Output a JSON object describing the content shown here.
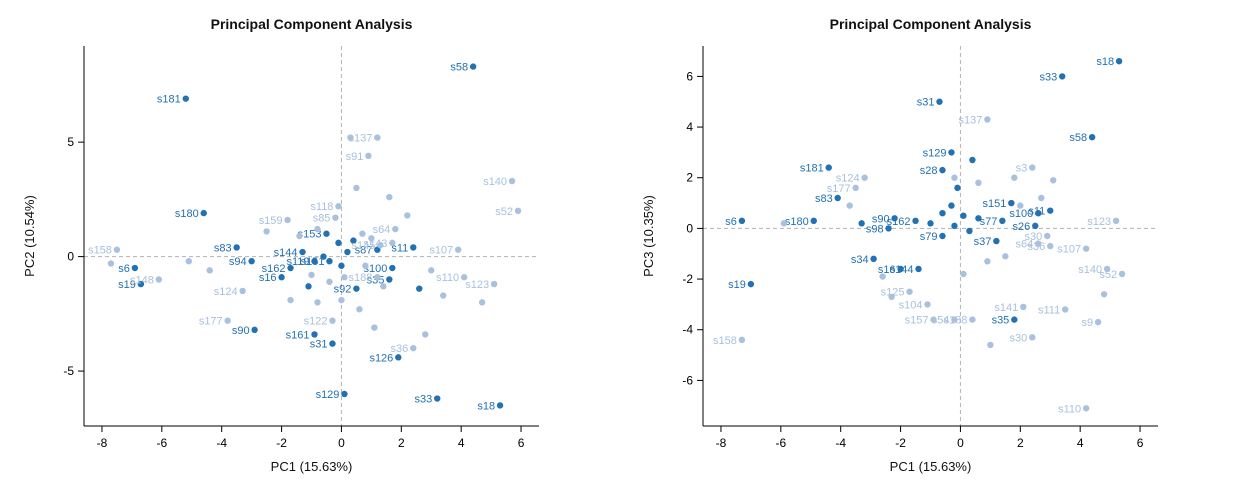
{
  "colors": {
    "dark_group": "#2271b3",
    "light_group": "#a9c0de",
    "zero_line": "#b3b3b3",
    "axis": "#000000",
    "title": "#111111"
  },
  "chart_data": [
    {
      "type": "scatter",
      "title": "Principal Component Analysis",
      "xlabel": "PC1 (15.63%)",
      "ylabel": "PC2 (10.54%)",
      "xlim": [
        -8.6,
        6.6
      ],
      "ylim": [
        -7.4,
        9.2
      ],
      "xticks": [
        -8,
        -6,
        -4,
        -2,
        0,
        2,
        4,
        6
      ],
      "yticks": [
        -5,
        0,
        5
      ],
      "grid": false,
      "zero_lines": true,
      "legend": "none",
      "series": [
        {
          "name": "group-dark",
          "color": "#2271b3",
          "points": [
            {
              "label": "s58",
              "x": 4.4,
              "y": 8.3
            },
            {
              "label": "s181",
              "x": -5.2,
              "y": 6.9
            },
            {
              "label": "s180",
              "x": -4.6,
              "y": 1.9
            },
            {
              "label": "s83",
              "x": -3.5,
              "y": 0.4
            },
            {
              "label": "s94",
              "x": -3.0,
              "y": -0.2
            },
            {
              "label": "s6",
              "x": -6.9,
              "y": -0.5
            },
            {
              "label": "s19",
              "x": -6.7,
              "y": -1.2
            },
            {
              "label": "s153",
              "x": -0.5,
              "y": 1.0
            },
            {
              "label": "s144",
              "x": -1.3,
              "y": 0.2
            },
            {
              "label": "s162",
              "x": -1.7,
              "y": -0.5
            },
            {
              "label": "s16",
              "x": -2.0,
              "y": -0.9
            },
            {
              "label": "s119",
              "x": -0.9,
              "y": -0.2
            },
            {
              "label": "s151",
              "x": -0.4,
              "y": -0.2
            },
            {
              "label": "s87",
              "x": 1.2,
              "y": 0.3
            },
            {
              "label": "s11",
              "x": 2.4,
              "y": 0.4
            },
            {
              "label": "s100",
              "x": 1.7,
              "y": -0.5
            },
            {
              "label": "s35",
              "x": 1.6,
              "y": -1.0
            },
            {
              "label": "s92",
              "x": 0.5,
              "y": -1.4
            },
            {
              "label": "s90",
              "x": -2.9,
              "y": -3.2
            },
            {
              "label": "s161",
              "x": -0.9,
              "y": -3.4
            },
            {
              "label": "s31",
              "x": -0.3,
              "y": -3.8
            },
            {
              "label": "s126",
              "x": 1.9,
              "y": -4.4
            },
            {
              "label": "s129",
              "x": 0.1,
              "y": -6.0
            },
            {
              "label": "s33",
              "x": 3.2,
              "y": -6.2
            },
            {
              "label": "s18",
              "x": 5.3,
              "y": -6.5
            },
            {
              "label": "",
              "x": -0.1,
              "y": 0.6
            },
            {
              "label": "",
              "x": 0.2,
              "y": 0.2
            },
            {
              "label": "",
              "x": -0.6,
              "y": 0.0
            },
            {
              "label": "",
              "x": 0.4,
              "y": 0.7
            },
            {
              "label": "",
              "x": 0.0,
              "y": -0.4
            },
            {
              "label": "",
              "x": 2.6,
              "y": -1.4
            },
            {
              "label": "",
              "x": -1.1,
              "y": -1.3
            }
          ]
        },
        {
          "name": "group-light",
          "color": "#a9c0de",
          "points": [
            {
              "label": "s137",
              "x": 1.2,
              "y": 5.2
            },
            {
              "label": "s91",
              "x": 0.9,
              "y": 4.4
            },
            {
              "label": "",
              "x": 0.3,
              "y": 5.2
            },
            {
              "label": "s140",
              "x": 5.7,
              "y": 3.3
            },
            {
              "label": "s52",
              "x": 5.9,
              "y": 2.0
            },
            {
              "label": "s118",
              "x": -0.1,
              "y": 2.2
            },
            {
              "label": "s85",
              "x": -0.2,
              "y": 1.7
            },
            {
              "label": "s159",
              "x": -1.8,
              "y": 1.6
            },
            {
              "label": "s64",
              "x": 1.8,
              "y": 1.2
            },
            {
              "label": "s143",
              "x": 1.7,
              "y": 0.6
            },
            {
              "label": "s145",
              "x": 1.3,
              "y": 0.5
            },
            {
              "label": "s158",
              "x": -7.5,
              "y": 0.3
            },
            {
              "label": "",
              "x": -7.7,
              "y": -0.3
            },
            {
              "label": "s148",
              "x": -6.1,
              "y": -1.0
            },
            {
              "label": "s124",
              "x": -3.3,
              "y": -1.5
            },
            {
              "label": "s177",
              "x": -3.8,
              "y": -2.8
            },
            {
              "label": "s122",
              "x": -0.3,
              "y": -2.8
            },
            {
              "label": "s107",
              "x": 3.9,
              "y": 0.3
            },
            {
              "label": "s110",
              "x": 4.1,
              "y": -0.9
            },
            {
              "label": "s123",
              "x": 5.1,
              "y": -1.2
            },
            {
              "label": "s188",
              "x": 1.2,
              "y": -0.9
            },
            {
              "label": "s36",
              "x": 2.4,
              "y": -4.0
            },
            {
              "label": "",
              "x": -2.5,
              "y": 1.1
            },
            {
              "label": "",
              "x": -1.4,
              "y": 0.9
            },
            {
              "label": "",
              "x": -0.8,
              "y": 1.2
            },
            {
              "label": "",
              "x": 0.7,
              "y": 1.0
            },
            {
              "label": "",
              "x": 1.0,
              "y": 0.8
            },
            {
              "label": "",
              "x": -4.4,
              "y": -0.6
            },
            {
              "label": "",
              "x": -5.1,
              "y": -0.2
            },
            {
              "label": "",
              "x": -1.0,
              "y": -0.8
            },
            {
              "label": "",
              "x": -0.4,
              "y": -1.1
            },
            {
              "label": "",
              "x": 0.1,
              "y": -0.9
            },
            {
              "label": "",
              "x": 0.8,
              "y": -0.4
            },
            {
              "label": "",
              "x": 1.4,
              "y": -1.3
            },
            {
              "label": "",
              "x": -1.7,
              "y": -1.9
            },
            {
              "label": "",
              "x": -0.8,
              "y": -2.0
            },
            {
              "label": "",
              "x": 0.0,
              "y": -1.9
            },
            {
              "label": "",
              "x": 0.6,
              "y": -2.3
            },
            {
              "label": "",
              "x": 3.0,
              "y": -0.6
            },
            {
              "label": "",
              "x": 3.4,
              "y": -1.7
            },
            {
              "label": "",
              "x": 4.7,
              "y": -2.0
            },
            {
              "label": "",
              "x": 1.1,
              "y": -3.1
            },
            {
              "label": "",
              "x": 2.8,
              "y": -3.4
            },
            {
              "label": "",
              "x": 1.6,
              "y": 2.6
            },
            {
              "label": "",
              "x": 2.2,
              "y": 1.8
            },
            {
              "label": "",
              "x": 0.5,
              "y": 3.0
            }
          ]
        }
      ]
    },
    {
      "type": "scatter",
      "title": "Principal Component Analysis",
      "xlabel": "PC1 (15.63%)",
      "ylabel": "PC3 (10.35%)",
      "xlim": [
        -8.6,
        6.6
      ],
      "ylim": [
        -7.8,
        7.2
      ],
      "xticks": [
        -8,
        -6,
        -4,
        -2,
        0,
        2,
        4,
        6
      ],
      "yticks": [
        -6,
        -4,
        -2,
        0,
        2,
        4,
        6
      ],
      "grid": false,
      "zero_lines": true,
      "legend": "none",
      "series": [
        {
          "name": "group-dark",
          "color": "#2271b3",
          "points": [
            {
              "label": "s18",
              "x": 5.3,
              "y": 6.6
            },
            {
              "label": "s33",
              "x": 3.4,
              "y": 6.0
            },
            {
              "label": "s31",
              "x": -0.7,
              "y": 5.0
            },
            {
              "label": "s129",
              "x": -0.3,
              "y": 3.0
            },
            {
              "label": "s58",
              "x": 4.4,
              "y": 3.6
            },
            {
              "label": "s181",
              "x": -4.4,
              "y": 2.4
            },
            {
              "label": "s83",
              "x": -4.1,
              "y": 1.2
            },
            {
              "label": "s180",
              "x": -4.9,
              "y": 0.3
            },
            {
              "label": "s6",
              "x": -7.3,
              "y": 0.3
            },
            {
              "label": "s19",
              "x": -7.0,
              "y": -2.2
            },
            {
              "label": "s90",
              "x": -2.2,
              "y": 0.4
            },
            {
              "label": "s98",
              "x": -2.4,
              "y": 0.0
            },
            {
              "label": "s162",
              "x": -1.5,
              "y": 0.3
            },
            {
              "label": "s34",
              "x": -2.9,
              "y": -1.2
            },
            {
              "label": "s16",
              "x": -2.0,
              "y": -1.6
            },
            {
              "label": "s144",
              "x": -1.4,
              "y": -1.6
            },
            {
              "label": "s28",
              "x": -0.6,
              "y": 2.3
            },
            {
              "label": "s151",
              "x": 1.7,
              "y": 1.0
            },
            {
              "label": "s100",
              "x": 2.6,
              "y": 0.6
            },
            {
              "label": "s11",
              "x": 3.0,
              "y": 0.7
            },
            {
              "label": "s77",
              "x": 1.4,
              "y": 0.3
            },
            {
              "label": "s26",
              "x": 2.5,
              "y": 0.1
            },
            {
              "label": "s37",
              "x": 1.2,
              "y": -0.5
            },
            {
              "label": "s79",
              "x": -0.6,
              "y": -0.3
            },
            {
              "label": "s35",
              "x": 1.8,
              "y": -3.6
            },
            {
              "label": "",
              "x": -1.0,
              "y": 0.2
            },
            {
              "label": "",
              "x": -0.6,
              "y": 0.6
            },
            {
              "label": "",
              "x": -0.2,
              "y": 0.1
            },
            {
              "label": "",
              "x": 0.1,
              "y": 0.5
            },
            {
              "label": "",
              "x": 0.3,
              "y": -0.1
            },
            {
              "label": "",
              "x": -0.3,
              "y": 0.9
            },
            {
              "label": "",
              "x": 0.6,
              "y": 0.4
            },
            {
              "label": "",
              "x": -0.1,
              "y": 1.6
            },
            {
              "label": "",
              "x": 0.4,
              "y": 2.7
            },
            {
              "label": "",
              "x": -3.3,
              "y": 0.2
            }
          ]
        },
        {
          "name": "group-light",
          "color": "#a9c0de",
          "points": [
            {
              "label": "s137",
              "x": 0.9,
              "y": 4.3
            },
            {
              "label": "s3",
              "x": 2.4,
              "y": 2.4
            },
            {
              "label": "s124",
              "x": -3.2,
              "y": 2.0
            },
            {
              "label": "s177",
              "x": -3.5,
              "y": 1.6
            },
            {
              "label": "s123",
              "x": 5.2,
              "y": 0.3
            },
            {
              "label": "s30",
              "x": 2.9,
              "y": -0.3
            },
            {
              "label": "s107",
              "x": 4.2,
              "y": -0.8
            },
            {
              "label": "s140",
              "x": 4.9,
              "y": -1.6
            },
            {
              "label": "s52",
              "x": 5.4,
              "y": -1.8
            },
            {
              "label": "s64",
              "x": 2.6,
              "y": -0.6
            },
            {
              "label": "s36",
              "x": 3.0,
              "y": -0.7
            },
            {
              "label": "s141",
              "x": 2.1,
              "y": -3.1
            },
            {
              "label": "s111",
              "x": 3.5,
              "y": -3.2
            },
            {
              "label": "s9",
              "x": 4.6,
              "y": -3.7
            },
            {
              "label": "s30",
              "x": 2.4,
              "y": -4.3
            },
            {
              "label": "s158",
              "x": -7.3,
              "y": -4.4
            },
            {
              "label": "s110",
              "x": 4.2,
              "y": -7.1
            },
            {
              "label": "s104",
              "x": -1.1,
              "y": -3.0
            },
            {
              "label": "s125",
              "x": -1.7,
              "y": -2.5
            },
            {
              "label": "s157",
              "x": -0.9,
              "y": -3.6
            },
            {
              "label": "s54",
              "x": -0.2,
              "y": -3.6
            },
            {
              "label": "s188",
              "x": 0.4,
              "y": -3.6
            },
            {
              "label": "",
              "x": -5.9,
              "y": 0.2
            },
            {
              "label": "",
              "x": -3.7,
              "y": 0.9
            },
            {
              "label": "",
              "x": -2.6,
              "y": -1.9
            },
            {
              "label": "",
              "x": -2.3,
              "y": -2.7
            },
            {
              "label": "",
              "x": 0.9,
              "y": -1.3
            },
            {
              "label": "",
              "x": 1.5,
              "y": -1.1
            },
            {
              "label": "",
              "x": 2.0,
              "y": 0.9
            },
            {
              "label": "",
              "x": 1.8,
              "y": 2.0
            },
            {
              "label": "",
              "x": 0.6,
              "y": 1.8
            },
            {
              "label": "",
              "x": -0.2,
              "y": 2.0
            },
            {
              "label": "",
              "x": 3.1,
              "y": 1.9
            },
            {
              "label": "",
              "x": 2.7,
              "y": 1.2
            },
            {
              "label": "",
              "x": 0.1,
              "y": -1.8
            },
            {
              "label": "",
              "x": 1.0,
              "y": -4.6
            },
            {
              "label": "",
              "x": 4.8,
              "y": -2.6
            }
          ]
        }
      ]
    }
  ]
}
